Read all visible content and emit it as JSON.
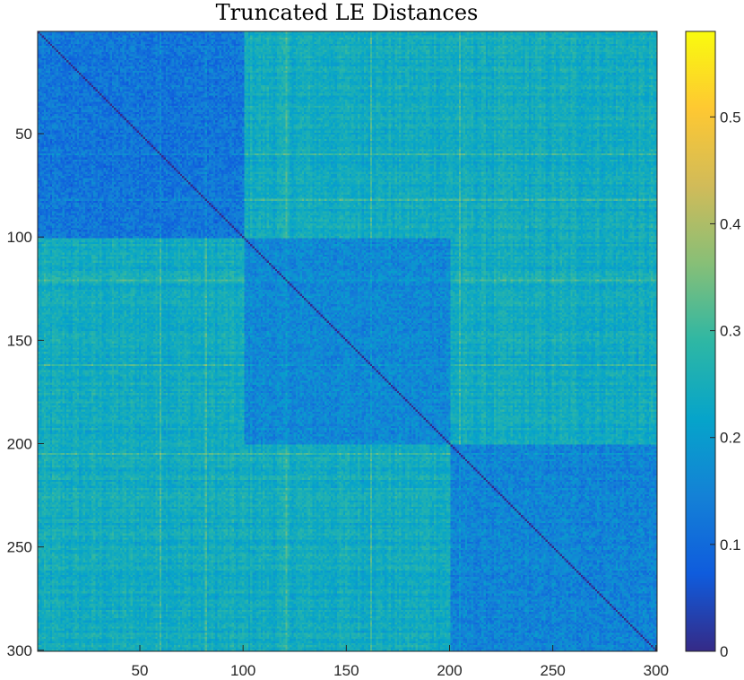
{
  "chart_data": {
    "type": "heatmap",
    "title": "Truncated LE Distances",
    "xlabel": "",
    "ylabel": "",
    "xlim": [
      1,
      300
    ],
    "ylim": [
      1,
      300
    ],
    "y_axis_direction": "reversed (1 at top, 300 at bottom)",
    "x_ticks": [
      50,
      100,
      150,
      200,
      250,
      300
    ],
    "y_ticks": [
      50,
      100,
      150,
      200,
      250,
      300
    ],
    "n": 300,
    "colormap": "parula",
    "colorbar": {
      "clim": [
        0,
        0.58
      ],
      "ticks": [
        0,
        0.1,
        0.2,
        0.3,
        0.4,
        0.5
      ],
      "location": "right"
    },
    "blocks": [
      {
        "from": 1,
        "to": 100,
        "typical_value": 0.12
      },
      {
        "from": 101,
        "to": 200,
        "typical_value": 0.16
      },
      {
        "from": 201,
        "to": 300,
        "typical_value": 0.15
      }
    ],
    "off_block_typical_value": 0.24,
    "diagonal_value": 0,
    "highlight_rows_approx": [
      60,
      82,
      121,
      162,
      205
    ],
    "highlight_value": 0.36
  },
  "colors": {
    "parula": [
      "#352a87",
      "#0f5cdd",
      "#1481d6",
      "#06a4ca",
      "#2eb7a4",
      "#87bf77",
      "#d1bb59",
      "#fec832",
      "#f9fb0e"
    ],
    "axis": "#262626"
  }
}
